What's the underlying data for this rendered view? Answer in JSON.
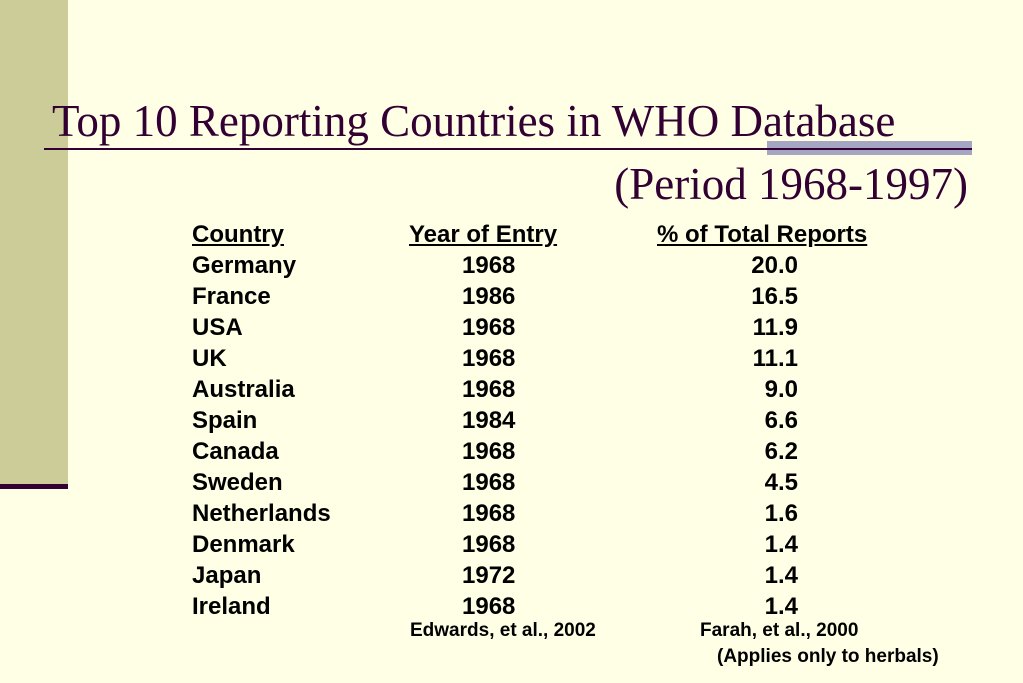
{
  "slide": {
    "title": "Top 10 Reporting Countries in WHO Database",
    "subtitle": "(Period 1968-1997)"
  },
  "table": {
    "headers": {
      "country": "Country",
      "year": "Year of Entry",
      "pct": "% of Total Reports"
    },
    "rows": [
      {
        "country": "Germany",
        "year": "1968",
        "pct": "20.0"
      },
      {
        "country": "France",
        "year": "1986",
        "pct": "16.5"
      },
      {
        "country": "USA",
        "year": "1968",
        "pct": "11.9"
      },
      {
        "country": "UK",
        "year": "1968",
        "pct": "11.1"
      },
      {
        "country": "Australia",
        "year": "1968",
        "pct": "9.0"
      },
      {
        "country": "Spain",
        "year": "1984",
        "pct": "6.6"
      },
      {
        "country": "Canada",
        "year": "1968",
        "pct": "6.2"
      },
      {
        "country": "Sweden",
        "year": "1968",
        "pct": "4.5"
      },
      {
        "country": "Netherlands",
        "year": "1968",
        "pct": "1.6"
      },
      {
        "country": "Denmark",
        "year": "1968",
        "pct": "1.4"
      },
      {
        "country": "Japan",
        "year": "1972",
        "pct": "1.4"
      },
      {
        "country": "Ireland",
        "year": "1968",
        "pct": "1.4"
      }
    ]
  },
  "citations": {
    "left": "Edwards, et al., 2002",
    "right": "Farah, et al., 2000",
    "note": "(Applies only to herbals)"
  },
  "colors": {
    "background": "#FFFFE5",
    "sidebar": "#CCCC99",
    "title": "#330033",
    "accent": "#A6A6C4"
  }
}
